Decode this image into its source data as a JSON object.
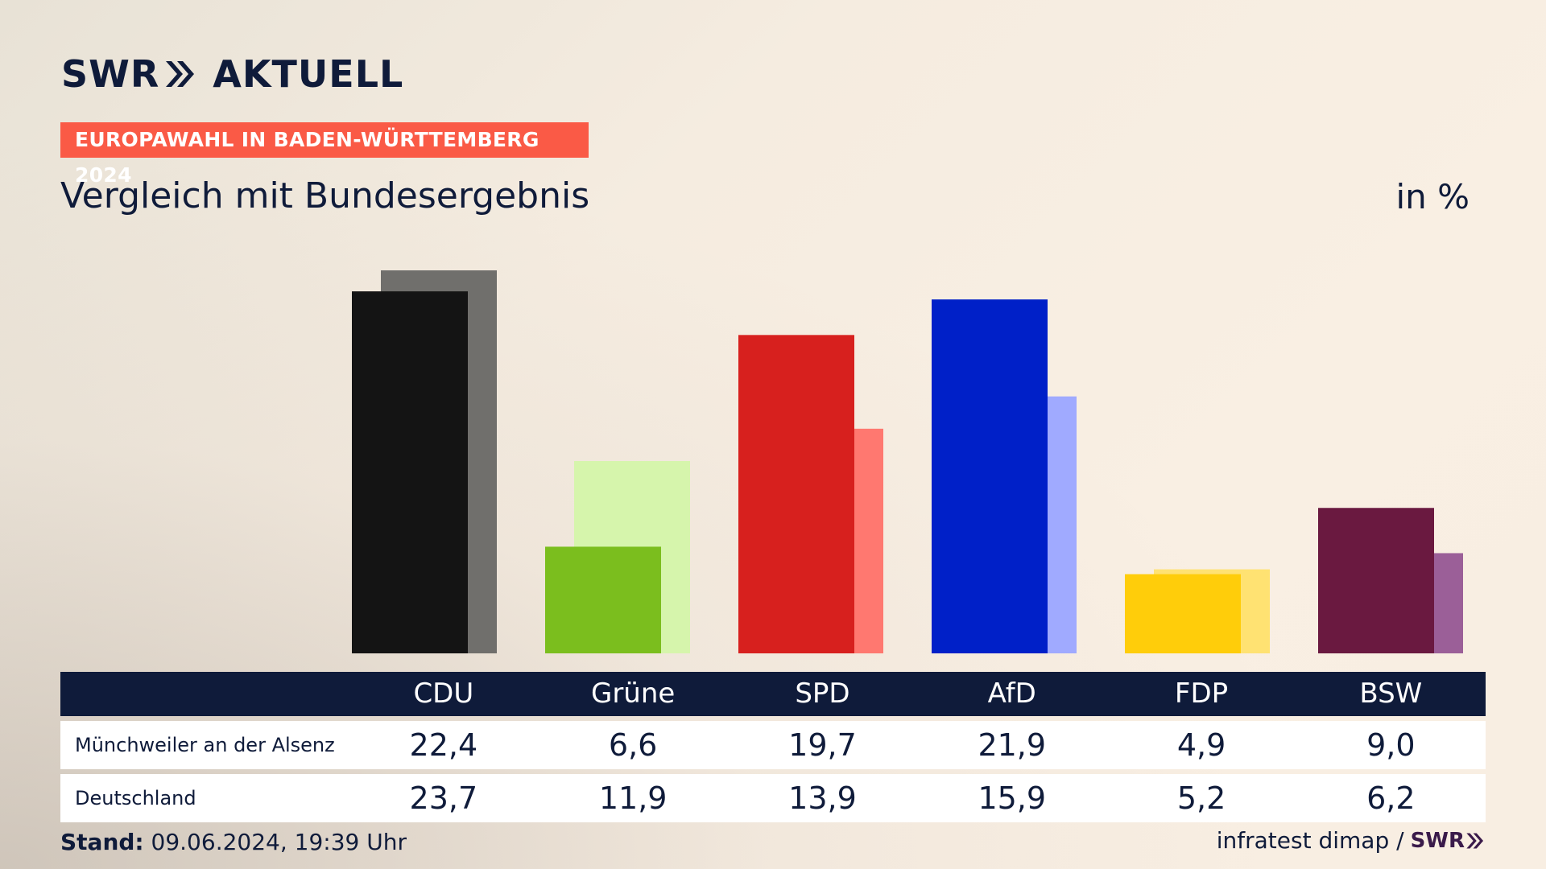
{
  "brand": {
    "logo_text": "SWR",
    "logo_suffix": "AKTUELL"
  },
  "kicker": "EUROPAWAHL IN BADEN-WÜRTTEMBERG 2024",
  "title": "Vergleich mit Bundesergebnis",
  "unit": "in %",
  "table": {
    "rows": [
      {
        "label": "Münchweiler an der Alsenz",
        "values": [
          "22,4",
          "6,6",
          "19,7",
          "21,9",
          "4,9",
          "9,0"
        ]
      },
      {
        "label": "Deutschland",
        "values": [
          "23,7",
          "11,9",
          "13,9",
          "15,9",
          "5,2",
          "6,2"
        ]
      }
    ]
  },
  "footer": {
    "stand_label": "Stand:",
    "stand_value": "09.06.2024, 19:39 Uhr",
    "source": "infratest dimap /",
    "source_logo": "SWR"
  },
  "chart_data": {
    "type": "bar",
    "categories": [
      "CDU",
      "Grüne",
      "SPD",
      "AfD",
      "FDP",
      "BSW"
    ],
    "series": [
      {
        "name": "Münchweiler an der Alsenz",
        "values": [
          22.4,
          6.6,
          19.7,
          21.9,
          4.9,
          9.0
        ]
      },
      {
        "name": "Deutschland",
        "values": [
          23.7,
          11.9,
          13.9,
          15.9,
          5.2,
          6.2
        ]
      }
    ],
    "ylim": [
      0,
      23.7
    ],
    "colors": {
      "primary": [
        "#141414",
        "#7bbe1e",
        "#d7201e",
        "#0020c8",
        "#ffcd0a",
        "#6a1940"
      ],
      "secondary": [
        "#706f6c",
        "#d6f5ac",
        "#ff7870",
        "#a0aaff",
        "#ffe272",
        "#9b5f98"
      ]
    },
    "title": "Vergleich mit Bundesergebnis",
    "xlabel": "",
    "ylabel": "in %"
  }
}
